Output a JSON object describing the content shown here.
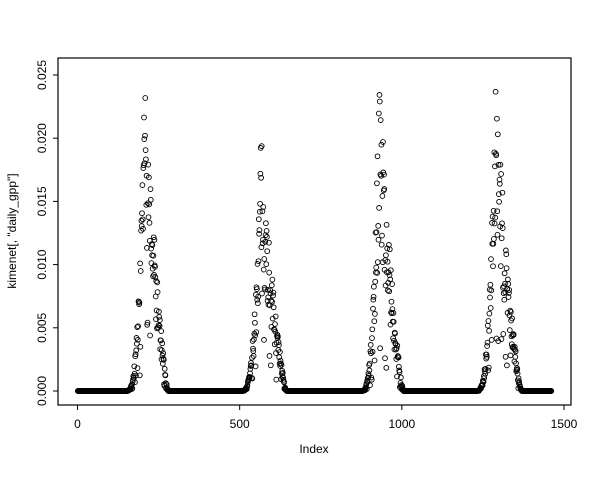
{
  "chart_data": {
    "type": "scatter",
    "title": "",
    "xlabel": "Index",
    "ylabel": "kimenet[, \"daily_gpp\"]",
    "xlim": [
      0,
      1500
    ],
    "ylim": [
      0.0,
      0.025
    ],
    "x_ticks": [
      {
        "value": 0,
        "label": "0"
      },
      {
        "value": 500,
        "label": "500"
      },
      {
        "value": 1000,
        "label": "1000"
      },
      {
        "value": 1500,
        "label": "1500"
      }
    ],
    "y_ticks": [
      {
        "value": 0.0,
        "label": "0.000"
      },
      {
        "value": 0.005,
        "label": "0.005"
      },
      {
        "value": 0.01,
        "label": "0.010"
      },
      {
        "value": 0.015,
        "label": "0.015"
      },
      {
        "value": 0.02,
        "label": "0.020"
      },
      {
        "value": 0.025,
        "label": "0.025"
      }
    ],
    "grid": false,
    "legend": false,
    "marker": "open-circle",
    "point_color": "#000000",
    "axis_color": "#000000",
    "background": "#ffffff",
    "n_points": 1461,
    "baseline_value": 0.0,
    "baseline_runs": [
      {
        "start": 1,
        "end": 150
      },
      {
        "start": 281,
        "end": 504
      },
      {
        "start": 646,
        "end": 874
      },
      {
        "start": 1006,
        "end": 1229
      },
      {
        "start": 1371,
        "end": 1461
      }
    ],
    "seasonal_peaks": [
      {
        "rise_start": 150,
        "peak_index": 208,
        "end": 280,
        "peak_value": 0.0255
      },
      {
        "rise_start": 505,
        "peak_index": 565,
        "end": 645,
        "peak_value": 0.0205
      },
      {
        "rise_start": 875,
        "peak_index": 930,
        "end": 1005,
        "peak_value": 0.0253
      },
      {
        "rise_start": 1230,
        "peak_index": 1288,
        "end": 1370,
        "peak_value": 0.0245
      }
    ],
    "noise_seed": 7
  }
}
